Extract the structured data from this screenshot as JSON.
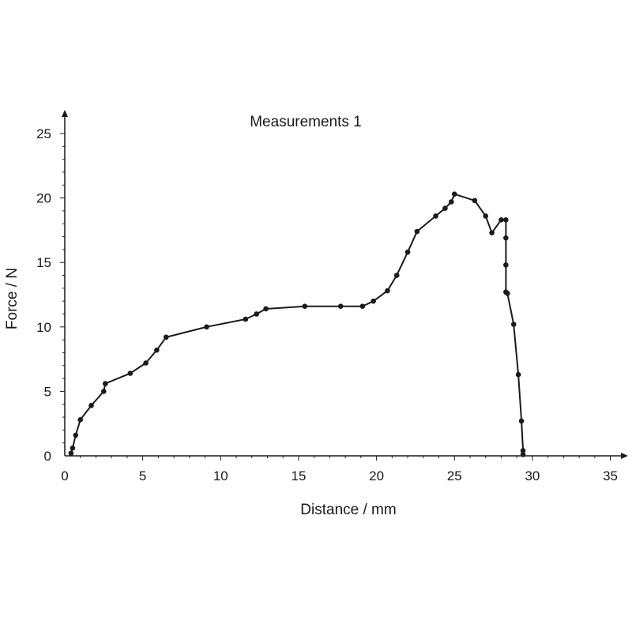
{
  "chart_data": {
    "type": "line",
    "title": "Measurements 1",
    "xlabel": "Distance / mm",
    "ylabel": "Force / N",
    "xlim": [
      0,
      36
    ],
    "ylim": [
      0,
      26.5
    ],
    "xticks": [
      0,
      5,
      10,
      15,
      20,
      25,
      30,
      35
    ],
    "yticks": [
      0,
      5,
      10,
      15,
      20,
      25
    ],
    "grid": false,
    "markers": true,
    "line_color": "#1a1a1a",
    "series": [
      {
        "x": [
          0.4,
          0.5,
          0.7,
          1.0,
          1.7,
          2.5,
          2.6,
          4.2,
          5.2,
          5.9,
          6.5,
          9.1,
          11.6,
          12.3,
          12.9,
          15.4,
          17.7,
          19.1,
          19.8,
          20.7,
          21.3,
          22.0,
          22.6,
          23.8,
          24.4,
          24.8,
          25.0,
          26.3,
          27.0,
          27.4,
          28.0,
          28.3,
          28.3,
          28.3,
          28.3,
          28.4,
          28.8,
          29.1,
          29.3,
          29.4,
          29.4
        ],
        "y": [
          0.2,
          0.6,
          1.6,
          2.8,
          3.9,
          5.0,
          5.6,
          6.4,
          7.2,
          8.2,
          9.2,
          10.0,
          10.6,
          11.0,
          11.4,
          11.6,
          11.6,
          11.6,
          12.0,
          12.8,
          14.0,
          15.8,
          17.4,
          18.6,
          19.2,
          19.7,
          20.3,
          19.8,
          18.6,
          17.3,
          18.3,
          18.3,
          16.9,
          14.8,
          12.7,
          12.6,
          10.2,
          6.3,
          2.7,
          0.4,
          0.1
        ]
      }
    ]
  }
}
